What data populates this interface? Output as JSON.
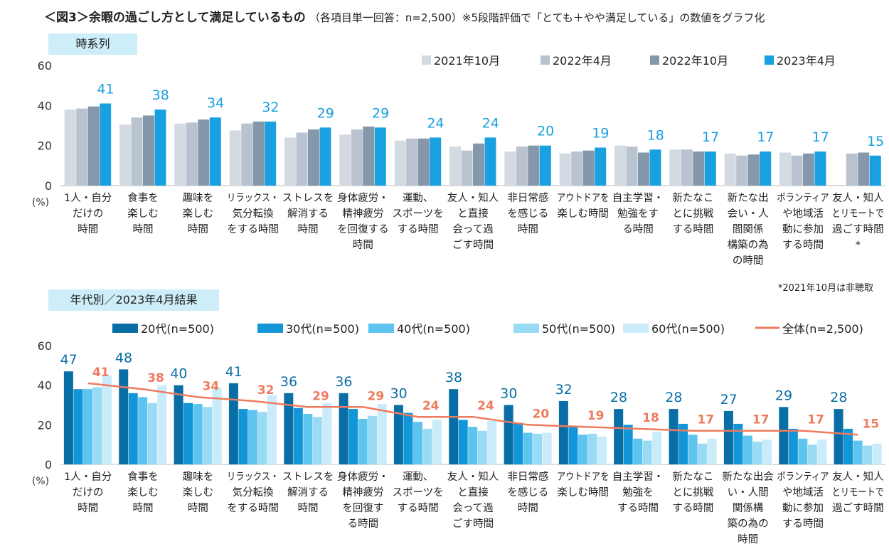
{
  "title": "＜図3＞余暇の過ごし方として満足しているもの",
  "subtitle": "（各項目単一回答：n=2,500）※5段階評価で「とても＋やや満足している」の数値をグラフ化",
  "footnote": "*2021年10月は非聴取",
  "chart_data": [
    {
      "type": "bar",
      "section_label": "時系列",
      "ylabel": "(%)",
      "ylim": [
        0,
        60
      ],
      "yticks": [
        "0",
        "20",
        "40",
        "60"
      ],
      "categories": [
        [
          "1人・自分",
          "だけの",
          "時間"
        ],
        [
          "食事を",
          "楽しむ",
          "時間"
        ],
        [
          "趣味を",
          "楽しむ",
          "時間"
        ],
        [
          "リラックス・",
          "気分転換",
          "をする時間"
        ],
        [
          "ストレスを",
          "解消する",
          "時間"
        ],
        [
          "身体疲労・",
          "精神疲労",
          "を回復する",
          "時間"
        ],
        [
          "運動、",
          "スポーツを",
          "する時間"
        ],
        [
          "友人・知人",
          "と直接",
          "会って過",
          "ごす時間"
        ],
        [
          "非日常感",
          "を感じる",
          "時間"
        ],
        [
          "アウトドアを",
          "楽しむ時間"
        ],
        [
          "自主学習・",
          "勉強をす",
          "る時間"
        ],
        [
          "新たなこ",
          "とに挑戦",
          "する時間"
        ],
        [
          "新たな出",
          "会い・人",
          "間関係",
          "構築の為",
          "の時間"
        ],
        [
          "ボランティア",
          "や地域活",
          "動に参加",
          "する時間"
        ],
        [
          "友人・知人",
          "とリモートで",
          "過ごす時間",
          "*"
        ]
      ],
      "series": [
        {
          "name": "2021年10月",
          "color": "#d3dae2",
          "values": [
            38,
            30.5,
            31,
            27.5,
            24,
            25.5,
            22.5,
            19.5,
            17,
            16,
            20,
            18,
            16,
            16.5,
            null
          ]
        },
        {
          "name": "2022年4月",
          "color": "#b8c3cf",
          "values": [
            38.5,
            34,
            31.5,
            31,
            26.5,
            28,
            23.5,
            17.5,
            19.5,
            17,
            19.5,
            18,
            15,
            15,
            16
          ]
        },
        {
          "name": "2022年10月",
          "color": "#8497ab",
          "values": [
            39.5,
            35,
            33,
            32,
            28,
            29.5,
            23.5,
            21,
            20,
            17.5,
            16.5,
            17,
            15.5,
            16,
            16.5
          ]
        },
        {
          "name": "2023年4月",
          "color": "#19a0e0",
          "values": [
            41,
            38,
            34,
            32,
            29,
            29,
            24,
            24,
            20,
            19,
            18,
            17,
            17,
            17,
            15
          ]
        }
      ],
      "data_labels": [
        "41",
        "38",
        "34",
        "32",
        "29",
        "29",
        "24",
        "24",
        "20",
        "19",
        "18",
        "17",
        "17",
        "17",
        "15"
      ],
      "legend_position": "top-right"
    },
    {
      "type": "bar",
      "section_label": "年代別／2023年4月結果",
      "ylabel": "(%)",
      "ylim": [
        0,
        60
      ],
      "yticks": [
        "0",
        "20",
        "40",
        "60"
      ],
      "categories": [
        [
          "1人・自分",
          "だけの",
          "時間"
        ],
        [
          "食事を",
          "楽しむ",
          "時間"
        ],
        [
          "趣味を",
          "楽しむ",
          "時間"
        ],
        [
          "リラックス・",
          "気分転換",
          "をする時間"
        ],
        [
          "ストレスを",
          "解消する",
          "時間"
        ],
        [
          "身体疲労・",
          "精神疲労",
          "を回復す",
          "る時間"
        ],
        [
          "運動、",
          "スポーツを",
          "する時間"
        ],
        [
          "友人・知人",
          "と直接",
          "会って過",
          "ごす時間"
        ],
        [
          "非日常感",
          "を感じる",
          "時間"
        ],
        [
          "アウトドアを",
          "楽しむ時間"
        ],
        [
          "自主学習・",
          "勉強を",
          "する時間"
        ],
        [
          "新たなこ",
          "とに挑戦",
          "する時間"
        ],
        [
          "新たな出会",
          "い・人間",
          "関係構",
          "築の為の",
          "時間"
        ],
        [
          "ボランティア",
          "や地域活",
          "動に参加",
          "する時間"
        ],
        [
          "友人・知人",
          "とリモートで",
          "過ごす時間"
        ]
      ],
      "series": [
        {
          "name": "20代(n=500)",
          "color": "#0a6ea6",
          "values": [
            47,
            48,
            40,
            41,
            36,
            36,
            30,
            38,
            30,
            32,
            28,
            28,
            27,
            29,
            28
          ]
        },
        {
          "name": "30代(n=500)",
          "color": "#1296d8",
          "values": [
            38,
            36,
            31,
            28,
            28.5,
            28,
            26,
            22.5,
            21,
            19,
            20,
            20.5,
            20.5,
            18,
            18
          ]
        },
        {
          "name": "40代(n=500)",
          "color": "#5cc4ee",
          "values": [
            38,
            34,
            30.5,
            27.5,
            25.5,
            23,
            21.5,
            19,
            16,
            15,
            13,
            15,
            14.5,
            13,
            12
          ]
        },
        {
          "name": "50代(n=500)",
          "color": "#99dbf5",
          "values": [
            39,
            31,
            29,
            26.5,
            24,
            24.5,
            18,
            17,
            15.5,
            15.5,
            12,
            10.5,
            11.5,
            10,
            9.5
          ]
        },
        {
          "name": "60代(n=500)",
          "color": "#c9ebfa",
          "values": [
            45,
            40,
            38.5,
            35,
            31,
            30.5,
            22.5,
            22,
            16,
            14,
            16.5,
            13,
            12.5,
            12.5,
            10.5
          ]
        }
      ],
      "line_series": {
        "name": "全体(n=2,500)",
        "color": "#ee7b5e",
        "values": [
          41,
          38,
          34,
          32,
          29,
          29,
          24,
          24,
          20,
          19,
          18,
          17,
          17,
          17,
          15
        ]
      },
      "data_labels_top": [
        "47",
        "48",
        "40",
        "41",
        "36",
        "36",
        "30",
        "38",
        "30",
        "32",
        "28",
        "28",
        "27",
        "29",
        "28"
      ],
      "data_labels_total": [
        "41",
        "38",
        "34",
        "32",
        "29",
        "29",
        "24",
        "24",
        "20",
        "19",
        "18",
        "17",
        "17",
        "17",
        "15"
      ],
      "legend_position": "top"
    }
  ]
}
